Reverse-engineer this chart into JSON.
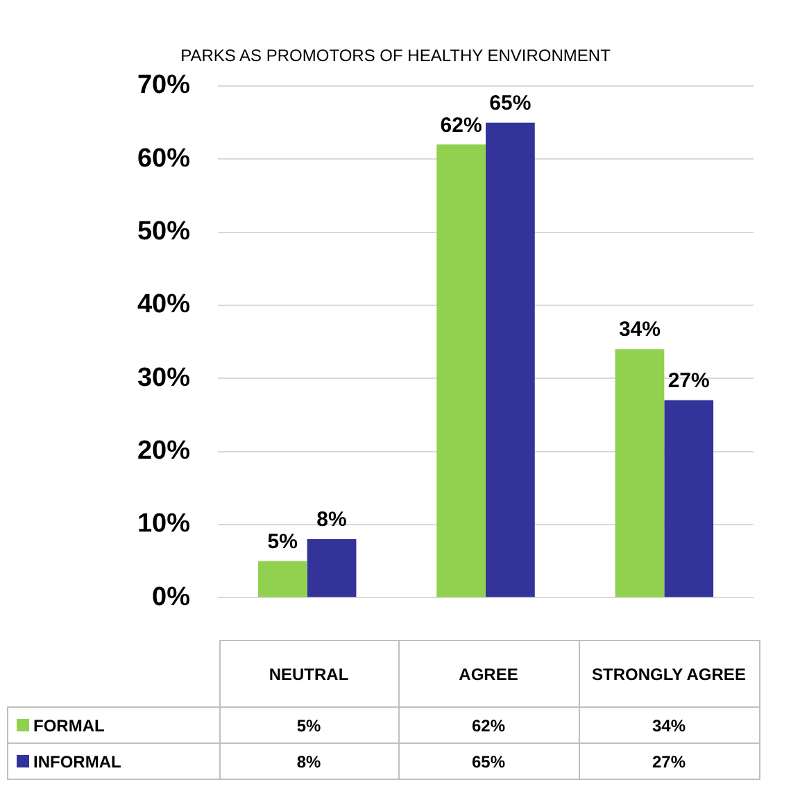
{
  "chart_data": {
    "type": "bar",
    "title": "PARKS AS PROMOTORS OF HEALTHY ENVIRONMENT",
    "categories": [
      "NEUTRAL",
      "AGREE",
      "STRONGLY AGREE"
    ],
    "series": [
      {
        "name": "FORMAL",
        "color": "#92d050",
        "values": [
          5,
          62,
          34
        ],
        "value_labels": [
          "5%",
          "62%",
          "34%"
        ]
      },
      {
        "name": "INFORMAL",
        "color": "#333399",
        "values": [
          8,
          65,
          27
        ],
        "value_labels": [
          "8%",
          "65%",
          "27%"
        ]
      }
    ],
    "ylim": [
      0,
      70
    ],
    "yticks": [
      {
        "value": 0,
        "label": "0%"
      },
      {
        "value": 10,
        "label": "10%"
      },
      {
        "value": 20,
        "label": "20%"
      },
      {
        "value": 30,
        "label": "30%"
      },
      {
        "value": 40,
        "label": "40%"
      },
      {
        "value": 50,
        "label": "50%"
      },
      {
        "value": 60,
        "label": "60%"
      },
      {
        "value": 70,
        "label": "70%"
      }
    ],
    "grid": "y",
    "legend": "bottom"
  }
}
